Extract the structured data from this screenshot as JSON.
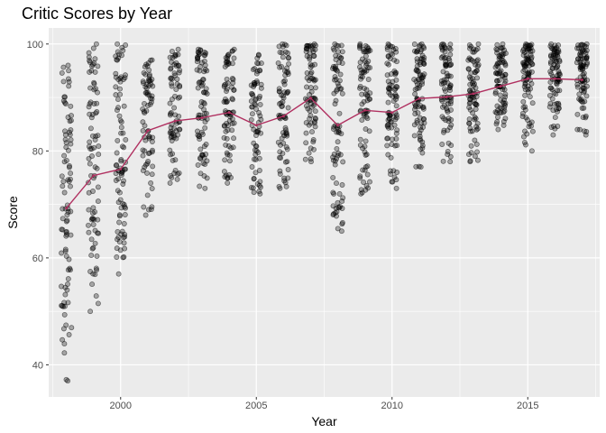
{
  "chart_data": {
    "type": "scatter",
    "title": "Critic Scores by Year",
    "xlabel": "Year",
    "ylabel": "Score",
    "xlim": [
      1997.35,
      2017.65
    ],
    "ylim": [
      34,
      103
    ],
    "x_ticks": [
      2000,
      2005,
      2010,
      2015
    ],
    "y_ticks": [
      40,
      60,
      80,
      100
    ],
    "grid": true,
    "legend": "none",
    "colors": {
      "panel": "#ebebeb",
      "grid": "#ffffff",
      "points": "#000000",
      "mean_line": "#b03060"
    },
    "point_summary": [
      {
        "year": 1998,
        "min": 37,
        "max": 96,
        "count": 90
      },
      {
        "year": 1999,
        "min": 50,
        "max": 100,
        "count": 85
      },
      {
        "year": 2000,
        "min": 57,
        "max": 100,
        "count": 90
      },
      {
        "year": 2001,
        "min": 68,
        "max": 97,
        "count": 75
      },
      {
        "year": 2002,
        "min": 74,
        "max": 99,
        "count": 75
      },
      {
        "year": 2003,
        "min": 73,
        "max": 99,
        "count": 80
      },
      {
        "year": 2004,
        "min": 74,
        "max": 99,
        "count": 80
      },
      {
        "year": 2005,
        "min": 72,
        "max": 98,
        "count": 75
      },
      {
        "year": 2006,
        "min": 73,
        "max": 100,
        "count": 80
      },
      {
        "year": 2007,
        "min": 78,
        "max": 100,
        "count": 80
      },
      {
        "year": 2008,
        "min": 65,
        "max": 100,
        "count": 85
      },
      {
        "year": 2009,
        "min": 72,
        "max": 100,
        "count": 85
      },
      {
        "year": 2010,
        "min": 73,
        "max": 100,
        "count": 90
      },
      {
        "year": 2011,
        "min": 77,
        "max": 100,
        "count": 90
      },
      {
        "year": 2012,
        "min": 78,
        "max": 100,
        "count": 85
      },
      {
        "year": 2013,
        "min": 78,
        "max": 100,
        "count": 85
      },
      {
        "year": 2014,
        "min": 84,
        "max": 100,
        "count": 85
      },
      {
        "year": 2015,
        "min": 80,
        "max": 100,
        "count": 90
      },
      {
        "year": 2016,
        "min": 83,
        "max": 100,
        "count": 85
      },
      {
        "year": 2017,
        "min": 83,
        "max": 100,
        "count": 85
      }
    ],
    "series": [
      {
        "type": "line",
        "x": [
          1998,
          1999,
          2000,
          2001,
          2002,
          2003,
          2004,
          2005,
          2006,
          2007,
          2008,
          2009,
          2010,
          2011,
          2012,
          2013,
          2014,
          2015,
          2016,
          2017
        ],
        "values": [
          69.3,
          75.4,
          76.6,
          83.8,
          85.6,
          86.2,
          87.2,
          84.8,
          86.5,
          89.9,
          84.8,
          87.6,
          87.2,
          89.8,
          90.1,
          90.7,
          92.1,
          93.5,
          93.5,
          93.3
        ]
      }
    ]
  }
}
